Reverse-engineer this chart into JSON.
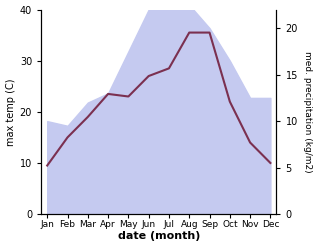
{
  "months": [
    "Jan",
    "Feb",
    "Mar",
    "Apr",
    "May",
    "Jun",
    "Jul",
    "Aug",
    "Sep",
    "Oct",
    "Nov",
    "Dec"
  ],
  "x": [
    0,
    1,
    2,
    3,
    4,
    5,
    6,
    7,
    8,
    9,
    10,
    11
  ],
  "temperature": [
    9.5,
    15.0,
    19.0,
    23.5,
    23.0,
    27.0,
    28.5,
    35.5,
    35.5,
    22.0,
    14.0,
    10.0
  ],
  "precipitation": [
    10.0,
    9.5,
    12.0,
    13.0,
    17.5,
    22.0,
    22.5,
    22.5,
    20.0,
    16.5,
    12.5,
    12.5
  ],
  "temp_color": "#7B3050",
  "precip_fill_color": "#c5caf0",
  "temp_ylim": [
    0,
    40
  ],
  "precip_ylim": [
    0,
    22
  ],
  "precip_yticks": [
    0,
    5,
    10,
    15,
    20
  ],
  "temp_yticks": [
    0,
    10,
    20,
    30,
    40
  ],
  "ylabel_left": "max temp (C)",
  "ylabel_right": "med. precipitation (kg/m2)",
  "xlabel": "date (month)",
  "bg_color": "#ffffff"
}
